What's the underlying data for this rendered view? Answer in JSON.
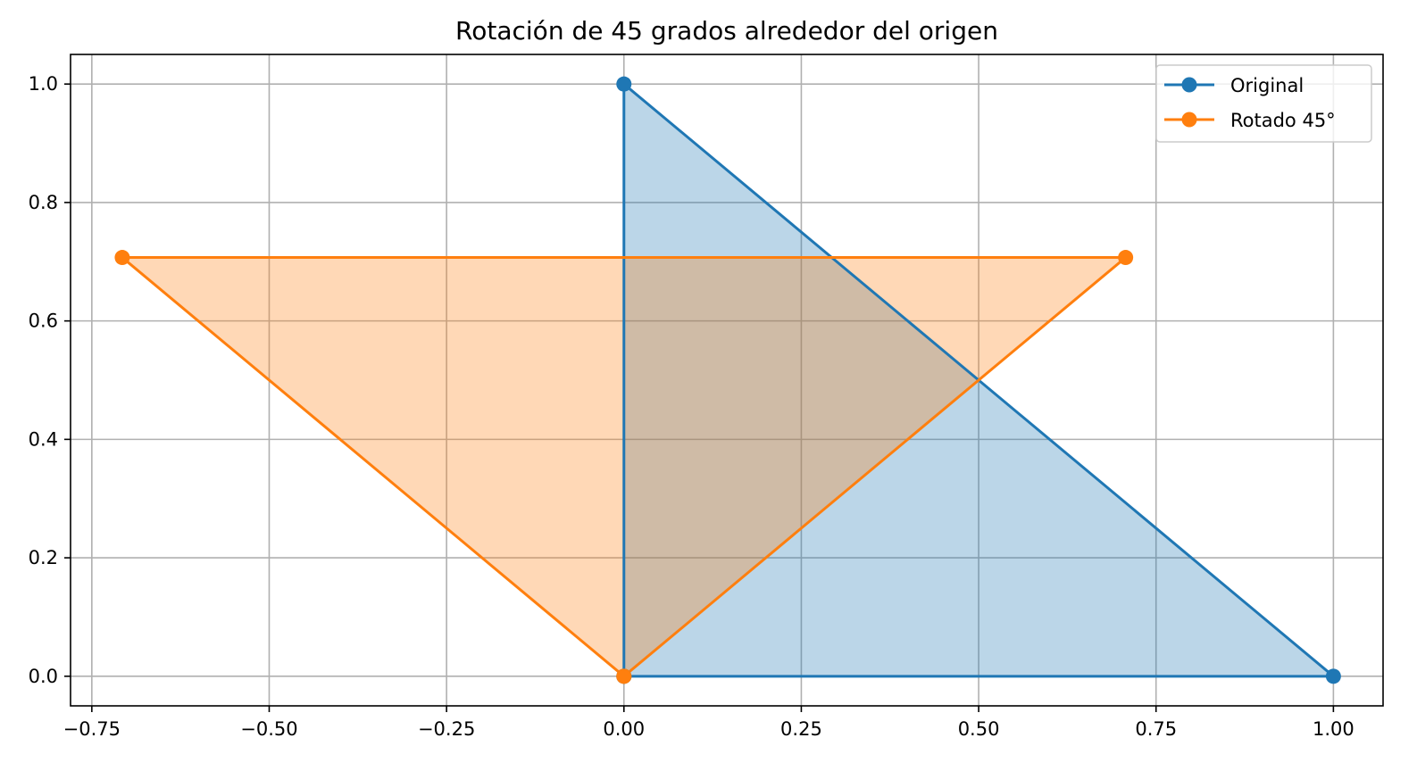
{
  "chart_data": {
    "type": "line",
    "title": "Rotación de 45 grados alrededor del origen",
    "xlabel": "",
    "ylabel": "",
    "xlim": [
      -0.78,
      1.07
    ],
    "ylim": [
      -0.05,
      1.05
    ],
    "grid": true,
    "legend_position": "top-right",
    "x_ticks": [
      {
        "value": -0.75,
        "label": "−0.75"
      },
      {
        "value": -0.5,
        "label": "−0.50"
      },
      {
        "value": -0.25,
        "label": "−0.25"
      },
      {
        "value": 0.0,
        "label": "0.00"
      },
      {
        "value": 0.25,
        "label": "0.25"
      },
      {
        "value": 0.5,
        "label": "0.50"
      },
      {
        "value": 0.75,
        "label": "0.75"
      },
      {
        "value": 1.0,
        "label": "1.00"
      }
    ],
    "y_ticks": [
      {
        "value": 0.0,
        "label": "0.0"
      },
      {
        "value": 0.2,
        "label": "0.2"
      },
      {
        "value": 0.4,
        "label": "0.4"
      },
      {
        "value": 0.6,
        "label": "0.6"
      },
      {
        "value": 0.8,
        "label": "0.8"
      },
      {
        "value": 1.0,
        "label": "1.0"
      }
    ],
    "series": [
      {
        "name": "Original",
        "color": "#1f77b4",
        "fill_opacity": 0.3,
        "points": [
          [
            0,
            0
          ],
          [
            1,
            0
          ],
          [
            0,
            1
          ],
          [
            0,
            0
          ]
        ]
      },
      {
        "name": "Rotado 45°",
        "color": "#ff7f0e",
        "fill_opacity": 0.3,
        "points": [
          [
            0,
            0
          ],
          [
            0.7071,
            0.7071
          ],
          [
            -0.7071,
            0.7071
          ],
          [
            0,
            0
          ]
        ]
      }
    ]
  }
}
